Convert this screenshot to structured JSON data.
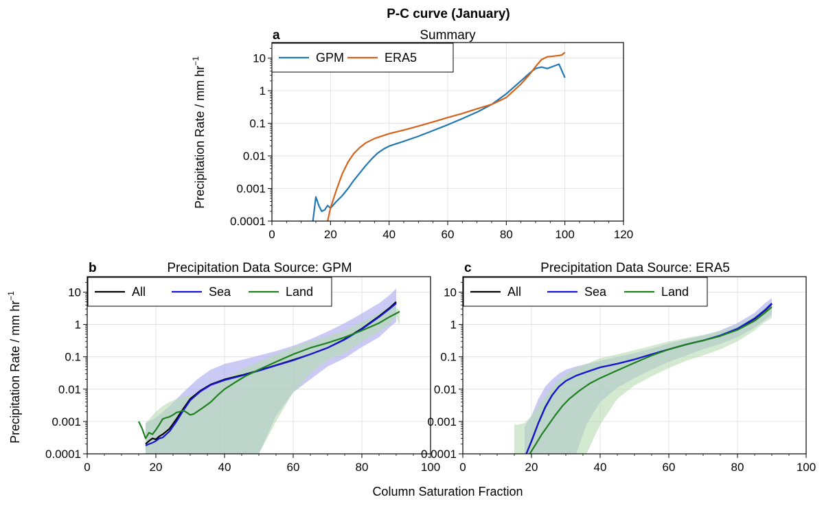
{
  "figure": {
    "title": "P-C curve (January)",
    "xlabel": "Column Saturation Fraction",
    "ylabel": "Precipitation Rate / mm hr",
    "ylabel_sup": "−1"
  },
  "colors": {
    "gpm": "#1f77b4",
    "era5": "#d4621a",
    "all": "#000000",
    "sea": "#1515dd",
    "land": "#1d7f1d",
    "sea_band": "#a6a6ee",
    "land_band": "#b5dcb0",
    "overlap_band": "#9aaec6"
  },
  "chart_data": [
    {
      "id": "a",
      "panel_label": "a",
      "title": "Summary",
      "type": "line",
      "ylog": true,
      "xlim": [
        0,
        120
      ],
      "ylim": [
        0.0001,
        30
      ],
      "xticks": [
        0,
        20,
        40,
        60,
        80,
        100,
        120
      ],
      "yticks": [
        {
          "value": 0.0001,
          "label": "0.0001"
        },
        {
          "value": 0.001,
          "label": "0.001"
        },
        {
          "value": 0.01,
          "label": "0.01"
        },
        {
          "value": 0.1,
          "label": "0.1"
        },
        {
          "value": 1,
          "label": "1"
        },
        {
          "value": 10,
          "label": "10"
        }
      ],
      "grid": true,
      "legend": {
        "placement": "top-left",
        "entries": [
          "GPM",
          "ERA5"
        ]
      },
      "series": [
        {
          "name": "GPM",
          "color_key": "gpm",
          "x": [
            14,
            15,
            16,
            17,
            18,
            19,
            20,
            22,
            24,
            26,
            28,
            30,
            32,
            34,
            36,
            38,
            40,
            45,
            50,
            55,
            60,
            65,
            70,
            75,
            80,
            85,
            88,
            90,
            92,
            94,
            96,
            98,
            100
          ],
          "y": [
            0.0001,
            0.00055,
            0.0003,
            0.0002,
            0.00022,
            0.0003,
            0.00025,
            0.0004,
            0.0006,
            0.001,
            0.0018,
            0.003,
            0.005,
            0.008,
            0.012,
            0.016,
            0.02,
            0.028,
            0.04,
            0.06,
            0.09,
            0.14,
            0.22,
            0.38,
            0.8,
            2.0,
            3.5,
            4.8,
            5.3,
            4.8,
            5.6,
            6.5,
            2.5
          ]
        },
        {
          "name": "ERA5",
          "color_key": "era5",
          "x": [
            19,
            20,
            22,
            24,
            26,
            28,
            30,
            32,
            35,
            40,
            45,
            50,
            55,
            60,
            65,
            70,
            75,
            80,
            85,
            88,
            90,
            92,
            94,
            96,
            98,
            99,
            100
          ],
          "y": [
            0.0001,
            0.00025,
            0.0009,
            0.0028,
            0.0065,
            0.012,
            0.018,
            0.025,
            0.034,
            0.048,
            0.062,
            0.082,
            0.11,
            0.15,
            0.2,
            0.28,
            0.38,
            0.62,
            1.6,
            3.2,
            5.5,
            9,
            11,
            11.5,
            12,
            12.5,
            15
          ]
        }
      ]
    },
    {
      "id": "b",
      "panel_label": "b",
      "title": "Precipitation Data Source: GPM",
      "type": "line",
      "ylog": true,
      "xlim": [
        0,
        100
      ],
      "ylim": [
        0.0001,
        30
      ],
      "xticks": [
        0,
        20,
        40,
        60,
        80,
        100
      ],
      "yticks": [
        {
          "value": 0.0001,
          "label": "0.0001"
        },
        {
          "value": 0.001,
          "label": "0.001"
        },
        {
          "value": 0.01,
          "label": "0.01"
        },
        {
          "value": 0.1,
          "label": "0.1"
        },
        {
          "value": 1,
          "label": "1"
        },
        {
          "value": 10,
          "label": "10"
        }
      ],
      "grid": true,
      "legend": {
        "placement": "top-left",
        "entries": [
          "All",
          "Sea",
          "Land"
        ]
      },
      "series": [
        {
          "name": "All",
          "color_key": "all",
          "x": [
            17,
            18,
            19,
            20,
            21,
            22,
            24,
            26,
            28,
            30,
            33,
            36,
            40,
            45,
            50,
            55,
            60,
            65,
            70,
            75,
            80,
            85,
            88,
            90
          ],
          "y": [
            0.0002,
            0.00025,
            0.0003,
            0.00028,
            0.00035,
            0.0004,
            0.0006,
            0.0012,
            0.0025,
            0.005,
            0.009,
            0.014,
            0.02,
            0.027,
            0.038,
            0.055,
            0.08,
            0.12,
            0.19,
            0.35,
            0.75,
            1.8,
            3.2,
            5.0
          ]
        },
        {
          "name": "Sea",
          "color_key": "sea",
          "x": [
            17,
            18,
            19,
            20,
            21,
            22,
            24,
            26,
            28,
            30,
            33,
            36,
            40,
            45,
            50,
            55,
            60,
            65,
            70,
            75,
            80,
            85,
            88,
            90
          ],
          "y": [
            0.00018,
            0.0002,
            0.00022,
            0.00025,
            0.0003,
            0.00032,
            0.0005,
            0.001,
            0.0022,
            0.0045,
            0.0085,
            0.0135,
            0.019,
            0.026,
            0.037,
            0.054,
            0.078,
            0.12,
            0.19,
            0.34,
            0.72,
            1.7,
            3.0,
            4.5
          ]
        },
        {
          "name": "Land",
          "color_key": "land",
          "x": [
            15,
            16,
            17,
            18,
            19,
            20,
            21,
            22,
            23,
            24,
            25,
            26,
            27,
            28,
            29,
            30,
            31,
            32,
            34,
            36,
            38,
            40,
            43,
            46,
            50,
            55,
            60,
            65,
            70,
            75,
            80,
            85,
            88,
            90,
            91
          ],
          "y": [
            0.001,
            0.0006,
            0.0003,
            0.00045,
            0.0004,
            0.00055,
            0.0008,
            0.0012,
            0.0013,
            0.0014,
            0.0016,
            0.0019,
            0.002,
            0.0022,
            0.0019,
            0.0016,
            0.0017,
            0.002,
            0.0028,
            0.004,
            0.0065,
            0.01,
            0.016,
            0.025,
            0.04,
            0.07,
            0.12,
            0.19,
            0.27,
            0.4,
            0.65,
            1.1,
            1.7,
            2.2,
            2.5
          ]
        }
      ],
      "bands": [
        {
          "name": "Sea",
          "color_key": "sea_band",
          "x": [
            17,
            20,
            24,
            28,
            32,
            36,
            40,
            45,
            50,
            55,
            60,
            65,
            70,
            75,
            80,
            85,
            88,
            90
          ],
          "upper": [
            0.0009,
            0.0013,
            0.003,
            0.008,
            0.02,
            0.04,
            0.06,
            0.08,
            0.11,
            0.15,
            0.22,
            0.35,
            0.6,
            1.1,
            2.2,
            4.5,
            8,
            13
          ],
          "lower": [
            0.0001,
            0.0001,
            0.0001,
            0.0001,
            0.0001,
            0.0001,
            0.0001,
            0.0001,
            0.0001,
            0.0015,
            0.008,
            0.02,
            0.05,
            0.09,
            0.2,
            0.4,
            0.8,
            1.2
          ]
        },
        {
          "name": "Land",
          "color_key": "land_band",
          "x": [
            17,
            20,
            22,
            24,
            26,
            28,
            32,
            36,
            40,
            45,
            50,
            55,
            60,
            65,
            70,
            75,
            80,
            85,
            88,
            90,
            91
          ],
          "upper": [
            0.0009,
            0.002,
            0.003,
            0.004,
            0.005,
            0.006,
            0.007,
            0.01,
            0.02,
            0.04,
            0.07,
            0.12,
            0.2,
            0.3,
            0.42,
            0.65,
            1.2,
            2.3,
            3.5,
            3.3,
            2.8
          ],
          "lower": [
            0.0001,
            0.0001,
            0.0001,
            0.0001,
            0.0001,
            0.0001,
            0.0001,
            0.0001,
            0.0001,
            0.0001,
            0.0001,
            0.001,
            0.008,
            0.03,
            0.08,
            0.13,
            0.3,
            0.6,
            1.0,
            1.8,
            0.9
          ]
        }
      ]
    },
    {
      "id": "c",
      "panel_label": "c",
      "title": "Precipitation Data Source: ERA5",
      "type": "line",
      "ylog": true,
      "xlim": [
        0,
        100
      ],
      "ylim": [
        0.0001,
        30
      ],
      "xticks": [
        0,
        20,
        40,
        60,
        80,
        100
      ],
      "yticks": [
        {
          "value": 0.0001,
          "label": "0.0001"
        },
        {
          "value": 0.001,
          "label": "0.001"
        },
        {
          "value": 0.01,
          "label": "0.01"
        },
        {
          "value": 0.1,
          "label": "0.1"
        },
        {
          "value": 1,
          "label": "1"
        },
        {
          "value": 10,
          "label": "10"
        }
      ],
      "grid": true,
      "legend": {
        "placement": "top-left",
        "entries": [
          "All",
          "Sea",
          "Land"
        ]
      },
      "series": [
        {
          "name": "All",
          "color_key": "all",
          "x": [
            18.5,
            20,
            22,
            24,
            26,
            28,
            30,
            33,
            36,
            40,
            45,
            50,
            55,
            60,
            65,
            70,
            75,
            80,
            85,
            88,
            90
          ],
          "y": [
            0.0001,
            0.00025,
            0.0009,
            0.0028,
            0.0065,
            0.012,
            0.018,
            0.026,
            0.034,
            0.047,
            0.061,
            0.083,
            0.12,
            0.17,
            0.24,
            0.32,
            0.45,
            0.72,
            1.5,
            2.7,
            4.3
          ]
        },
        {
          "name": "Sea",
          "color_key": "sea",
          "x": [
            18.5,
            20,
            22,
            24,
            26,
            28,
            30,
            33,
            36,
            40,
            45,
            50,
            55,
            60,
            65,
            70,
            75,
            80,
            85,
            88,
            90
          ],
          "y": [
            0.0001,
            0.00024,
            0.00088,
            0.0027,
            0.0064,
            0.012,
            0.018,
            0.026,
            0.034,
            0.047,
            0.061,
            0.083,
            0.12,
            0.17,
            0.24,
            0.32,
            0.46,
            0.74,
            1.55,
            2.8,
            4.5
          ]
        },
        {
          "name": "Land",
          "color_key": "land",
          "x": [
            19.5,
            21,
            23,
            25,
            27,
            29,
            31,
            34,
            37,
            40,
            45,
            50,
            55,
            60,
            65,
            70,
            75,
            80,
            85,
            88,
            90
          ],
          "y": [
            0.0001,
            0.00018,
            0.0004,
            0.0008,
            0.0016,
            0.003,
            0.005,
            0.009,
            0.015,
            0.022,
            0.038,
            0.065,
            0.11,
            0.17,
            0.24,
            0.32,
            0.44,
            0.68,
            1.3,
            2.3,
            3.5
          ]
        }
      ],
      "bands": [
        {
          "name": "Sea",
          "color_key": "sea_band",
          "x": [
            18,
            20,
            22,
            24,
            26,
            28,
            30,
            33,
            36,
            40,
            45,
            50,
            55,
            60,
            65,
            70,
            75,
            80,
            85,
            88,
            90
          ],
          "upper": [
            0.0007,
            0.0015,
            0.005,
            0.012,
            0.02,
            0.03,
            0.04,
            0.05,
            0.06,
            0.075,
            0.1,
            0.13,
            0.18,
            0.26,
            0.35,
            0.45,
            0.65,
            1.1,
            2.3,
            4.5,
            6.5
          ],
          "lower": [
            0.0001,
            0.0001,
            0.0001,
            0.0001,
            0.0001,
            0.0001,
            0.0001,
            0.0001,
            0.0008,
            0.004,
            0.011,
            0.022,
            0.04,
            0.07,
            0.11,
            0.17,
            0.25,
            0.4,
            0.8,
            1.4,
            2.0
          ]
        },
        {
          "name": "Land",
          "color_key": "land_band",
          "x": [
            15,
            16,
            18,
            20,
            24,
            28,
            32,
            36,
            40,
            45,
            50,
            55,
            60,
            65,
            70,
            75,
            80,
            85,
            88,
            90
          ],
          "upper": [
            0.0008,
            0.0008,
            0.0009,
            0.0015,
            0.006,
            0.02,
            0.04,
            0.06,
            0.09,
            0.12,
            0.16,
            0.22,
            0.3,
            0.38,
            0.48,
            0.62,
            0.95,
            1.9,
            3.3,
            5.0
          ],
          "lower": [
            0.0001,
            0.0001,
            0.0001,
            0.0001,
            0.0001,
            0.0001,
            0.0001,
            0.0001,
            0.0008,
            0.005,
            0.013,
            0.025,
            0.045,
            0.075,
            0.11,
            0.17,
            0.3,
            0.65,
            1.2,
            1.6
          ]
        }
      ]
    }
  ]
}
